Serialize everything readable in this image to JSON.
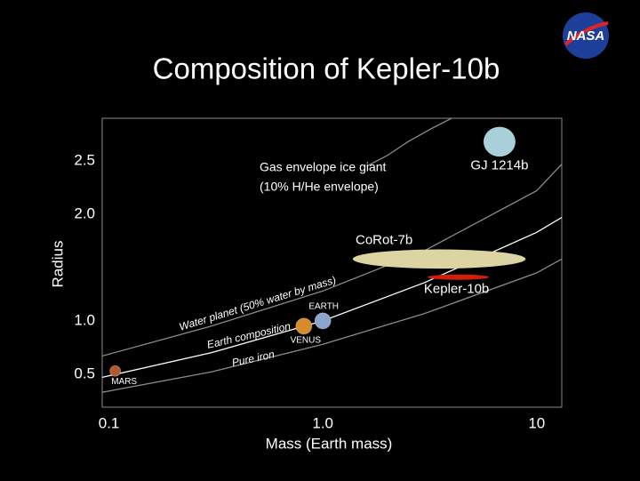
{
  "logo": "NASA",
  "chart_data": {
    "type": "scatter",
    "title": "Composition of Kepler-10b",
    "x_label": "Mass (Earth mass)",
    "y_label": "Radius",
    "xscale": "log",
    "xlim": [
      0.093,
      13.1
    ],
    "ylim": [
      0.19,
      2.9
    ],
    "xticks": [
      0.1,
      {
        "value": 1,
        "label": "1.0"
      },
      10
    ],
    "yticks": [
      0.5,
      {
        "value": 1,
        "label": "1.0"
      },
      {
        "value": 2,
        "label": "2.0"
      },
      2.5
    ],
    "curves": [
      {
        "name": "Water planet (50% water by mass)",
        "color": "#8a8a8a",
        "x": [
          0.093,
          0.3,
          1,
          3,
          10,
          13.1
        ],
        "y": [
          0.67,
          0.95,
          1.28,
          1.66,
          2.22,
          2.47
        ]
      },
      {
        "name": "Earth composition",
        "color": "#ffffff",
        "x": [
          0.093,
          0.3,
          1,
          3,
          10,
          13.1
        ],
        "y": [
          0.47,
          0.7,
          1.0,
          1.36,
          1.83,
          1.97
        ]
      },
      {
        "name": "Pure iron",
        "color": "#8a8a8a",
        "x": [
          0.093,
          0.3,
          1,
          3,
          10,
          13.1
        ],
        "y": [
          0.33,
          0.52,
          0.78,
          1.07,
          1.45,
          1.58
        ]
      },
      {
        "name": "Gas envelope ice giant",
        "note": "(10% H/He envelope)",
        "color": "#8a8a8a",
        "x": [
          1.6,
          2,
          2.5,
          3.2,
          4.0
        ],
        "y": [
          2.45,
          2.55,
          2.68,
          2.8,
          2.9
        ]
      }
    ],
    "planets": [
      {
        "name": "MARS",
        "color": "#b5582f",
        "x": 0.107,
        "y": 0.53
      },
      {
        "name": "VENUS",
        "color": "#d98a2a",
        "x": 0.815,
        "y": 0.95
      },
      {
        "name": "EARTH",
        "color": "#8aa6cc",
        "x": 1.0,
        "y": 1.0
      },
      {
        "name": "CoRot-7b",
        "color": "#ddd4a3",
        "x": 3.5,
        "y": 1.58,
        "xrange": [
          1.43,
          9.2
        ],
        "yrange": [
          1.5,
          1.68
        ]
      },
      {
        "name": "Kepler-10b",
        "color": "#d11d0c",
        "x": 4.3,
        "y": 1.41,
        "xrange": [
          2.9,
          5.6
        ],
        "yrange": [
          1.39,
          1.44
        ]
      },
      {
        "name": "GJ 1214b",
        "color": "#a9cfd8",
        "x": 6.7,
        "y": 2.68,
        "xrange": [
          5.6,
          7.9
        ],
        "yrange": [
          2.54,
          2.82
        ]
      }
    ]
  }
}
